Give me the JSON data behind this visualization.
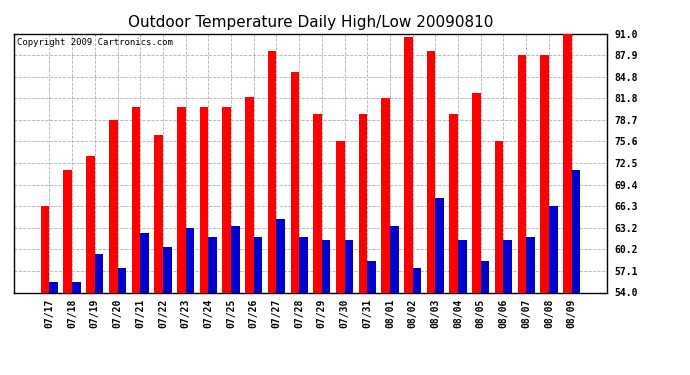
{
  "title": "Outdoor Temperature Daily High/Low 20090810",
  "copyright": "Copyright 2009 Cartronics.com",
  "dates": [
    "07/17",
    "07/18",
    "07/19",
    "07/20",
    "07/21",
    "07/22",
    "07/23",
    "07/24",
    "07/25",
    "07/26",
    "07/27",
    "07/28",
    "07/29",
    "07/30",
    "07/31",
    "08/01",
    "08/02",
    "08/03",
    "08/04",
    "08/05",
    "08/06",
    "08/07",
    "08/08",
    "08/09"
  ],
  "highs": [
    66.3,
    71.5,
    73.5,
    78.7,
    80.5,
    76.5,
    80.5,
    80.5,
    80.5,
    82.0,
    88.5,
    85.5,
    79.5,
    75.6,
    79.5,
    81.8,
    90.5,
    88.5,
    79.5,
    82.5,
    75.6,
    88.0,
    87.9,
    91.0
  ],
  "lows": [
    55.5,
    55.5,
    59.5,
    57.5,
    62.5,
    60.5,
    63.2,
    62.0,
    63.5,
    62.0,
    64.5,
    62.0,
    61.5,
    61.5,
    58.5,
    63.5,
    57.5,
    67.5,
    61.5,
    58.5,
    61.5,
    62.0,
    66.3,
    71.5
  ],
  "high_color": "#ff0000",
  "low_color": "#0000cc",
  "background_color": "#ffffff",
  "grid_color": "#b0b0b0",
  "ymin": 54.0,
  "ymax": 91.0,
  "yticks": [
    54.0,
    57.1,
    60.2,
    63.2,
    66.3,
    69.4,
    72.5,
    75.6,
    78.7,
    81.8,
    84.8,
    87.9,
    91.0
  ],
  "title_fontsize": 11,
  "copyright_fontsize": 6.5,
  "tick_fontsize": 7,
  "bar_width": 0.38
}
